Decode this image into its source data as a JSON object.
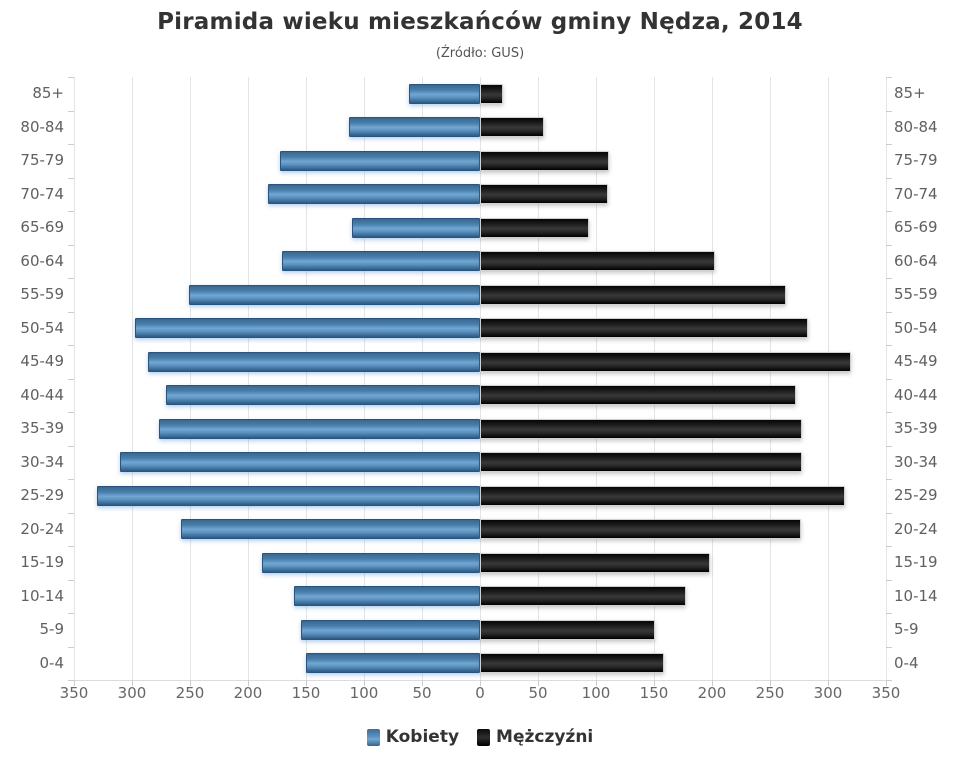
{
  "title": "Piramida wieku mieszkańców gminy Nędza, 2014",
  "subtitle": "(Źródło: GUS)",
  "legend": {
    "women_label": "Kobiety",
    "men_label": "Mężczyźni"
  },
  "colors": {
    "women": "#4b80b8",
    "men": "#1c1c1c",
    "title": "#333333",
    "subtitle": "#555555",
    "axis_labels": "#606060",
    "gridline": "#e4e4e4",
    "tick": "#cccccc"
  },
  "chart_data": {
    "type": "bar",
    "variant": "population-pyramid",
    "title": "Piramida wieku mieszkańców gminy Nędza, 2014",
    "subtitle": "(Źródło: GUS)",
    "categories": [
      "85+",
      "80-84",
      "75-79",
      "70-74",
      "65-69",
      "60-64",
      "55-59",
      "50-54",
      "45-49",
      "40-44",
      "35-39",
      "30-34",
      "25-29",
      "20-24",
      "15-19",
      "10-14",
      "5-9",
      "0-4"
    ],
    "series": [
      {
        "name": "Kobiety",
        "side": "left",
        "color": "#4b80b8",
        "values": [
          61,
          113,
          172,
          183,
          110,
          171,
          251,
          297,
          286,
          271,
          277,
          310,
          330,
          258,
          188,
          160,
          154,
          150
        ]
      },
      {
        "name": "Mężczyźni",
        "side": "right",
        "color": "#1c1c1c",
        "values": [
          20,
          55,
          111,
          110,
          94,
          203,
          264,
          283,
          320,
          272,
          278,
          278,
          315,
          277,
          198,
          178,
          151,
          159
        ]
      }
    ],
    "xlim": [
      0,
      350
    ],
    "tick_step": 50,
    "x_tick_labels": [
      350,
      300,
      250,
      200,
      150,
      100,
      50,
      0,
      50,
      100,
      150,
      200,
      250,
      300,
      350
    ],
    "grid": true,
    "legend_position": "bottom",
    "y_axis_label_sides": [
      "left",
      "right"
    ]
  }
}
